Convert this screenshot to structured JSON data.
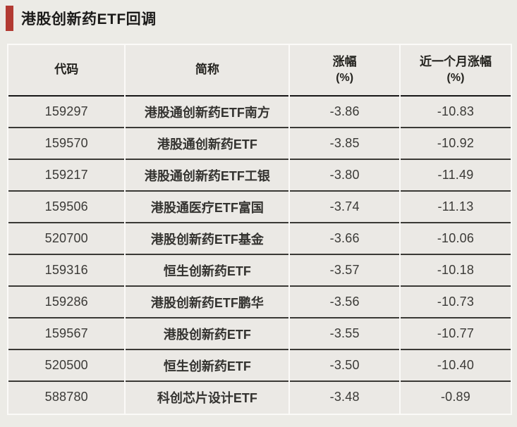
{
  "page": {
    "title": "港股创新药ETF回调"
  },
  "colors": {
    "accent_bar": "#b23a32",
    "page_background": "#ecebe6",
    "cell_background": "#ebe9e5",
    "separator_white": "#fbfaf8",
    "header_rule": "#161616",
    "row_rule": "#3a3935",
    "title_text": "#1c1b1a",
    "cell_text": "#3b3a37"
  },
  "chart_data": {
    "type": "table",
    "title": "港股创新药ETF回调",
    "columns": [
      {
        "label": "代码",
        "unit": ""
      },
      {
        "label": "简称",
        "unit": ""
      },
      {
        "label": "涨幅",
        "unit": "(%)"
      },
      {
        "label": "近一个月涨幅",
        "unit": "(%)"
      }
    ],
    "rows": [
      {
        "code": "159297",
        "name": "港股通创新药ETF南方",
        "change_pct": "-3.86",
        "month_change_pct": "-10.83"
      },
      {
        "code": "159570",
        "name": "港股通创新药ETF",
        "change_pct": "-3.85",
        "month_change_pct": "-10.92"
      },
      {
        "code": "159217",
        "name": "港股通创新药ETF工银",
        "change_pct": "-3.80",
        "month_change_pct": "-11.49"
      },
      {
        "code": "159506",
        "name": "港股通医疗ETF富国",
        "change_pct": "-3.74",
        "month_change_pct": "-11.13"
      },
      {
        "code": "520700",
        "name": "港股创新药ETF基金",
        "change_pct": "-3.66",
        "month_change_pct": "-10.06"
      },
      {
        "code": "159316",
        "name": "恒生创新药ETF",
        "change_pct": "-3.57",
        "month_change_pct": "-10.18"
      },
      {
        "code": "159286",
        "name": "港股创新药ETF鹏华",
        "change_pct": "-3.56",
        "month_change_pct": "-10.73"
      },
      {
        "code": "159567",
        "name": "港股创新药ETF",
        "change_pct": "-3.55",
        "month_change_pct": "-10.77"
      },
      {
        "code": "520500",
        "name": "恒生创新药ETF",
        "change_pct": "-3.50",
        "month_change_pct": "-10.40"
      },
      {
        "code": "588780",
        "name": "科创芯片设计ETF",
        "change_pct": "-3.48",
        "month_change_pct": "-0.89"
      }
    ]
  }
}
